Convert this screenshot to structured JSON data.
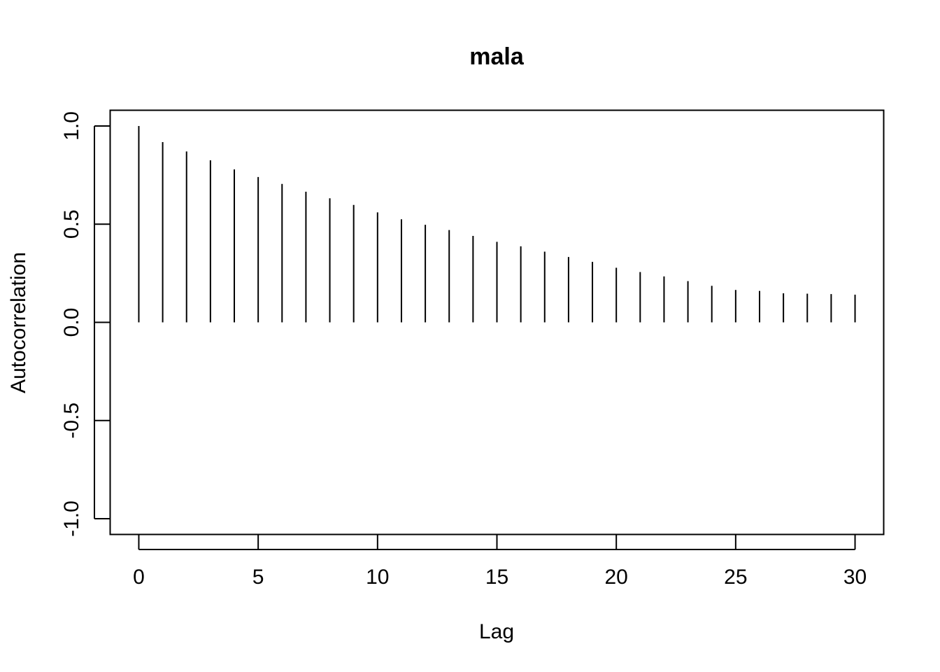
{
  "chart_data": {
    "type": "bar",
    "title": "mala",
    "xlabel": "Lag",
    "ylabel": "Autocorrelation",
    "x": [
      0,
      1,
      2,
      3,
      4,
      5,
      6,
      7,
      8,
      9,
      10,
      11,
      12,
      13,
      14,
      15,
      16,
      17,
      18,
      19,
      20,
      21,
      22,
      23,
      24,
      25,
      26,
      27,
      28,
      29,
      30
    ],
    "values": [
      1.0,
      0.918,
      0.87,
      0.825,
      0.779,
      0.74,
      0.705,
      0.665,
      0.632,
      0.598,
      0.56,
      0.525,
      0.497,
      0.47,
      0.44,
      0.41,
      0.387,
      0.36,
      0.333,
      0.308,
      0.278,
      0.256,
      0.234,
      0.21,
      0.186,
      0.165,
      0.16,
      0.148,
      0.146,
      0.144,
      0.141
    ],
    "xlim": [
      -1.2,
      31.2
    ],
    "ylim": [
      -1.08,
      1.08
    ],
    "xticks": [
      0,
      5,
      10,
      15,
      20,
      25,
      30
    ],
    "yticks": [
      -1.0,
      -0.5,
      0.0,
      0.5,
      1.0
    ],
    "xtick_labels": [
      "0",
      "5",
      "10",
      "15",
      "20",
      "25",
      "30"
    ],
    "ytick_labels": [
      "-1.0",
      "-0.5",
      "0.0",
      "0.5",
      "1.0"
    ],
    "grid": false,
    "legend": "none",
    "colors": {
      "bars": "#000000",
      "frame": "#000000",
      "background": "#ffffff"
    }
  }
}
